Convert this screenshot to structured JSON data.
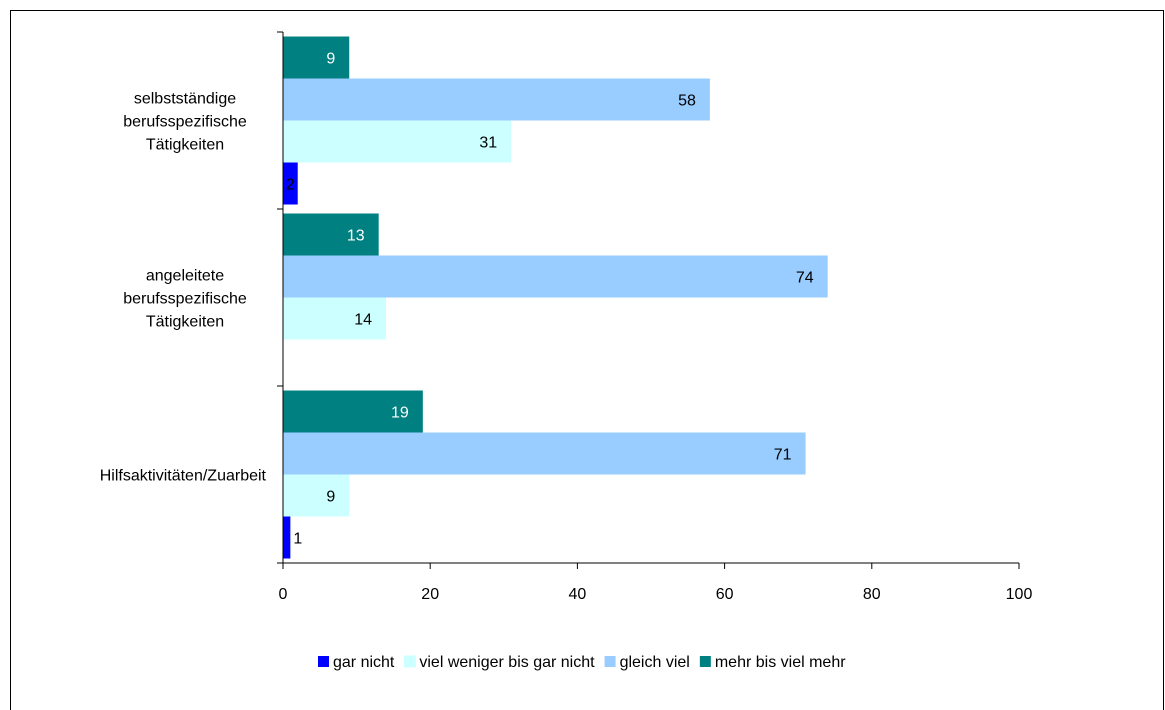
{
  "chart_data": {
    "type": "bar",
    "orientation": "horizontal",
    "categories": [
      [
        "selbstständige",
        "berufsspezifische",
        "Tätigkeiten"
      ],
      [
        "angeleitete",
        "berufsspezifische",
        "Tätigkeiten"
      ],
      [
        "Hilfsaktivitäten/Zuarbeit"
      ]
    ],
    "series": [
      {
        "name": "gar nicht",
        "color": "#0000ff",
        "label_color": "#000000",
        "values": [
          2,
          null,
          1
        ]
      },
      {
        "name": "viel weniger bis gar nicht",
        "color": "#ccffff",
        "label_color": "#000000",
        "values": [
          31,
          14,
          9
        ]
      },
      {
        "name": "gleich viel",
        "color": "#99ccff",
        "label_color": "#000000",
        "values": [
          58,
          74,
          71
        ]
      },
      {
        "name": "mehr bis viel mehr",
        "color": "#008080",
        "label_color": "#ffffff",
        "values": [
          9,
          13,
          19
        ]
      }
    ],
    "xlim": [
      0,
      100
    ],
    "x_ticks": [
      "0",
      "20",
      "40",
      "60",
      "80",
      "100"
    ],
    "grid": false,
    "legend_position": "bottom"
  }
}
